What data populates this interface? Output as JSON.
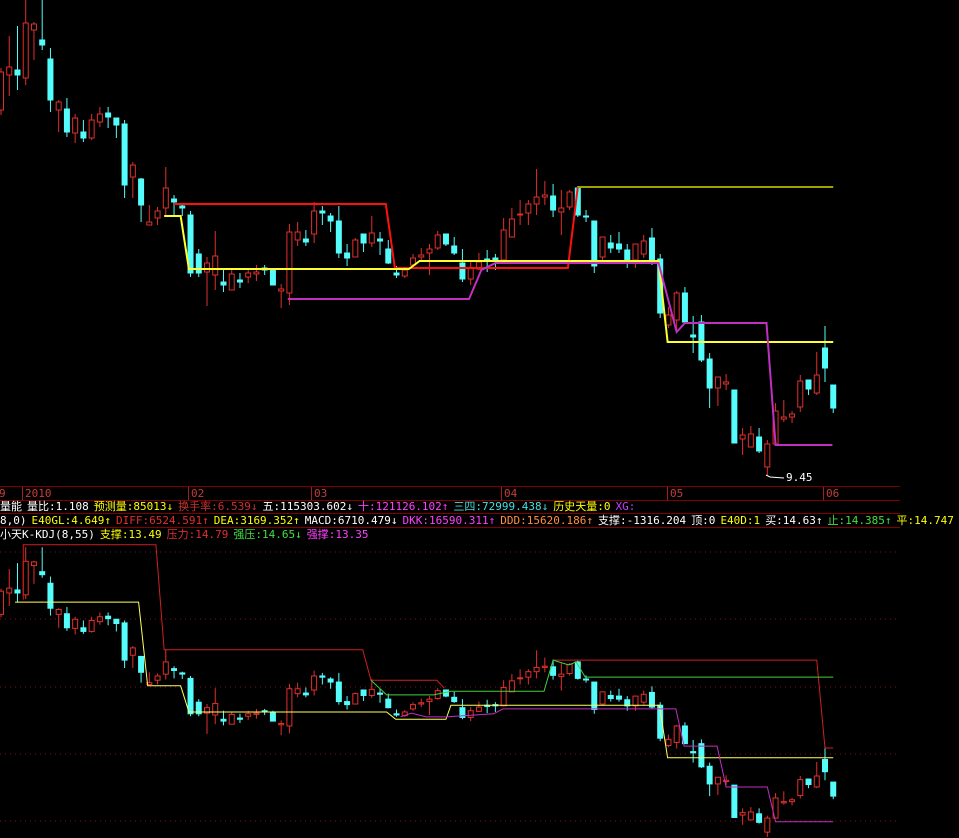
{
  "axis": {
    "labels": [
      "9",
      "2010",
      "02",
      "03",
      "04",
      "05",
      "06"
    ]
  },
  "indicator_rows": [
    [
      {
        "text": "量能",
        "color": "#ffffff"
      },
      {
        "text": "量比:1.108",
        "color": "#ffffff"
      },
      {
        "text": "预测量:85013↓",
        "color": "#ffff00"
      },
      {
        "text": "换手率:6.539↓",
        "color": "#c83232"
      },
      {
        "text": "五:115303.602↓",
        "color": "#ffffff"
      },
      {
        "text": "十:121126.102↑",
        "color": "#ff40ff"
      },
      {
        "text": "三四:72999.438↓",
        "color": "#40e0e0"
      },
      {
        "text": "历史天量:0",
        "color": "#ffff00"
      },
      {
        "text": "XG:",
        "color": "#c040ff"
      }
    ],
    [
      {
        "text": "8,0)",
        "color": "#ffffff"
      },
      {
        "text": "E40GL:4.649↑",
        "color": "#ffff00"
      },
      {
        "text": "DIFF:6524.591↑",
        "color": "#e03030"
      },
      {
        "text": "DEA:3169.352↑",
        "color": "#ffff00"
      },
      {
        "text": "MACD:6710.479↓",
        "color": "#ffffff"
      },
      {
        "text": "DKK:16590.311↑",
        "color": "#ff40ff"
      },
      {
        "text": "DDD:15620.186↑",
        "color": "#ff9040"
      },
      {
        "text": "支撑:-1316.204",
        "color": "#ffffff"
      },
      {
        "text": "顶:0",
        "color": "#ffffff"
      },
      {
        "text": "E40D:1",
        "color": "#ffff00"
      },
      {
        "text": "买:14.63↑",
        "color": "#ffffff"
      },
      {
        "text": "止:14.385↑",
        "color": "#40e040"
      },
      {
        "text": "平:14.747",
        "color": "#ffff00"
      }
    ],
    [
      {
        "text": "小天K-KDJ(8,55)",
        "color": "#ffffff"
      },
      {
        "text": "支撑:13.49",
        "color": "#ffff00"
      },
      {
        "text": "压力:14.79",
        "color": "#e03030"
      },
      {
        "text": "强压:14.65↓",
        "color": "#40e040"
      },
      {
        "text": "强撑:13.35",
        "color": "#ff40ff"
      }
    ]
  ],
  "colors": {
    "up": "#e0302c",
    "down": "#54fcfc",
    "background": "#000000",
    "grid": "#800000"
  },
  "chart_data": [
    {
      "type": "candlestick",
      "pane": "main",
      "annotation": "9.45",
      "candles": [
        [
          13.1,
          13.52,
          13.05,
          13.48
        ],
        [
          13.45,
          13.84,
          13.24,
          13.53
        ],
        [
          13.5,
          13.94,
          13.3,
          13.45
        ],
        [
          13.42,
          14.2,
          13.35,
          13.97
        ],
        [
          13.9,
          13.98,
          13.6,
          13.96
        ],
        [
          13.8,
          14.2,
          13.7,
          13.75
        ],
        [
          13.61,
          13.72,
          13.08,
          13.2
        ],
        [
          13.1,
          13.2,
          12.88,
          13.18
        ],
        [
          13.11,
          13.22,
          12.83,
          12.88
        ],
        [
          12.87,
          13.06,
          12.77,
          13.02
        ],
        [
          12.88,
          13.0,
          12.78,
          12.82
        ],
        [
          12.82,
          13.06,
          12.8,
          13.0
        ],
        [
          12.98,
          13.13,
          12.93,
          13.06
        ],
        [
          13.07,
          13.13,
          12.92,
          13.03
        ],
        [
          13.02,
          13.02,
          12.82,
          12.95
        ],
        [
          12.96,
          13.0,
          12.22,
          12.35
        ],
        [
          12.43,
          12.58,
          12.22,
          12.55
        ],
        [
          12.41,
          12.42,
          11.98,
          12.15
        ],
        [
          11.95,
          12.15,
          11.95,
          11.98
        ],
        [
          12.02,
          12.13,
          11.95,
          12.09
        ],
        [
          12.12,
          12.53,
          12.03,
          12.32
        ],
        [
          12.21,
          12.25,
          12.05,
          12.18
        ],
        [
          12.14,
          12.16,
          12.04,
          12.12
        ],
        [
          12.05,
          12.09,
          11.43,
          11.47
        ],
        [
          11.66,
          11.71,
          11.43,
          11.47
        ],
        [
          11.48,
          11.63,
          11.14,
          11.57
        ],
        [
          11.45,
          11.89,
          11.3,
          11.64
        ],
        [
          11.38,
          11.52,
          11.28,
          11.35
        ],
        [
          11.3,
          11.5,
          11.3,
          11.46
        ],
        [
          11.4,
          11.47,
          11.32,
          11.38
        ],
        [
          11.43,
          11.52,
          11.37,
          11.47
        ],
        [
          11.46,
          11.55,
          11.39,
          11.48
        ],
        [
          11.52,
          11.55,
          11.45,
          11.5
        ],
        [
          11.5,
          11.52,
          11.35,
          11.35
        ],
        [
          11.29,
          11.36,
          11.12,
          11.31
        ],
        [
          11.27,
          11.96,
          11.15,
          11.88
        ],
        [
          11.8,
          11.98,
          11.74,
          11.88
        ],
        [
          11.81,
          11.9,
          11.74,
          11.78
        ],
        [
          11.86,
          12.18,
          11.77,
          12.09
        ],
        [
          12.09,
          12.14,
          11.95,
          12.07
        ],
        [
          12.04,
          12.07,
          11.88,
          11.99
        ],
        [
          11.99,
          12.14,
          11.62,
          11.67
        ],
        [
          11.67,
          11.76,
          11.54,
          11.62
        ],
        [
          11.63,
          11.82,
          11.63,
          11.8
        ],
        [
          11.86,
          11.86,
          11.68,
          11.77
        ],
        [
          11.77,
          12.04,
          11.73,
          11.87
        ],
        [
          11.81,
          11.88,
          11.65,
          11.79
        ],
        [
          11.71,
          11.8,
          11.56,
          11.57
        ],
        [
          11.47,
          11.54,
          11.42,
          11.45
        ],
        [
          11.44,
          11.53,
          11.42,
          11.5
        ],
        [
          11.55,
          11.66,
          11.52,
          11.62
        ],
        [
          11.63,
          11.72,
          11.58,
          11.65
        ],
        [
          11.67,
          11.76,
          11.45,
          11.71
        ],
        [
          11.72,
          11.89,
          11.7,
          11.85
        ],
        [
          11.86,
          11.86,
          11.74,
          11.76
        ],
        [
          11.74,
          11.83,
          11.65,
          11.67
        ],
        [
          11.57,
          11.71,
          11.38,
          11.41
        ],
        [
          11.41,
          11.58,
          11.35,
          11.52
        ],
        [
          11.51,
          11.67,
          11.5,
          11.58
        ],
        [
          11.61,
          11.7,
          11.48,
          11.59
        ],
        [
          11.62,
          11.66,
          11.5,
          11.6
        ],
        [
          11.6,
          12.02,
          11.6,
          11.9
        ],
        [
          11.83,
          12.12,
          11.83,
          12.01
        ],
        [
          12.05,
          12.2,
          11.95,
          12.06
        ],
        [
          12.07,
          12.2,
          11.95,
          12.16
        ],
        [
          12.16,
          12.51,
          12.05,
          12.23
        ],
        [
          12.23,
          12.39,
          12.15,
          12.25
        ],
        [
          12.24,
          12.36,
          12.03,
          12.1
        ],
        [
          12.08,
          12.3,
          11.85,
          12.12
        ],
        [
          12.13,
          12.3,
          12.1,
          12.28
        ],
        [
          12.32,
          12.34,
          12.03,
          12.05
        ],
        [
          12.04,
          12.1,
          11.98,
          12.03
        ],
        [
          11.99,
          11.99,
          11.47,
          11.54
        ],
        [
          11.63,
          11.83,
          11.6,
          11.83
        ],
        [
          11.77,
          11.85,
          11.67,
          11.72
        ],
        [
          11.76,
          11.88,
          11.67,
          11.71
        ],
        [
          11.7,
          11.76,
          11.52,
          11.6
        ],
        [
          11.6,
          11.76,
          11.52,
          11.76
        ],
        [
          11.66,
          11.85,
          11.62,
          11.79
        ],
        [
          11.82,
          11.92,
          11.55,
          11.58
        ],
        [
          11.61,
          11.66,
          11.02,
          11.07
        ],
        [
          10.95,
          11.13,
          10.92,
          11.05
        ],
        [
          11.0,
          11.29,
          10.9,
          11.27
        ],
        [
          11.27,
          11.33,
          10.98,
          10.98
        ],
        [
          10.85,
          11.04,
          10.67,
          10.83
        ],
        [
          10.98,
          11.05,
          10.58,
          10.6
        ],
        [
          10.61,
          10.67,
          10.12,
          10.32
        ],
        [
          10.32,
          10.43,
          10.14,
          10.43
        ],
        [
          10.36,
          10.46,
          10.3,
          10.38
        ],
        [
          10.3,
          10.3,
          9.77,
          9.77
        ],
        [
          9.81,
          9.92,
          9.65,
          9.85
        ],
        [
          9.73,
          9.94,
          9.73,
          9.86
        ],
        [
          9.83,
          9.92,
          9.67,
          9.69
        ],
        [
          9.53,
          9.8,
          9.45,
          9.76
        ],
        [
          9.76,
          10.17,
          9.75,
          10.09
        ],
        [
          10.01,
          10.2,
          9.98,
          10.03
        ],
        [
          10.03,
          10.09,
          9.97,
          10.06
        ],
        [
          10.13,
          10.45,
          10.08,
          10.39
        ],
        [
          10.4,
          10.4,
          10.25,
          10.31
        ],
        [
          10.27,
          10.68,
          10.25,
          10.45
        ],
        [
          10.72,
          10.94,
          10.38,
          10.52
        ],
        [
          10.35,
          10.35,
          10.07,
          10.12
        ]
      ],
      "lines": [
        {
          "color": "#ff1010",
          "points": [
            [
              22,
              12.16
            ],
            [
              47.7,
              12.16
            ],
            [
              48.8,
              11.52
            ],
            [
              69.8,
              11.52
            ],
            [
              71,
              12.33
            ]
          ]
        },
        {
          "color": "#a0a000",
          "points": [
            [
              71,
              12.33
            ],
            [
              102,
              12.33
            ]
          ]
        },
        {
          "color": "#ffff30",
          "points": [
            [
              20.8,
              12.04
            ],
            [
              22.8,
              12.04
            ],
            [
              23.8,
              11.51
            ],
            [
              50.5,
              11.51
            ],
            [
              51.8,
              11.59
            ],
            [
              80.8,
              11.59
            ],
            [
              81.9,
              10.78
            ],
            [
              102,
              10.78
            ]
          ]
        },
        {
          "color": "#c030c0",
          "points": [
            [
              35.8,
              11.21
            ],
            [
              57.8,
              11.21
            ],
            [
              59.3,
              11.5
            ],
            [
              61,
              11.57
            ],
            [
              80.8,
              11.57
            ],
            [
              83,
              10.88
            ],
            [
              84,
              10.97
            ],
            [
              93.9,
              10.97
            ],
            [
              95,
              9.75
            ],
            [
              101.9,
              9.75
            ]
          ]
        }
      ]
    },
    {
      "type": "candlestick",
      "pane": "indicator",
      "lines": [
        {
          "color": "#d02020",
          "points": [
            [
              3.7,
              13.34
            ],
            [
              3.7,
              14.24
            ],
            [
              19.8,
              14.24
            ],
            [
              20.8,
              12.52
            ],
            [
              44.9,
              12.52
            ],
            [
              45.9,
              12.02
            ],
            [
              53.9,
              12.02
            ],
            [
              54.8,
              11.89
            ]
          ]
        },
        {
          "color": "#d02020",
          "points": [
            [
              68,
              12.35
            ],
            [
              100,
              12.35
            ],
            [
              101,
              10.91
            ],
            [
              102,
              10.91
            ]
          ]
        },
        {
          "color": "#ffff60",
          "points": [
            [
              2.7,
              13.3
            ],
            [
              17.7,
              13.3
            ],
            [
              18.8,
              11.93
            ],
            [
              22.8,
              11.93
            ],
            [
              23.8,
              11.5
            ],
            [
              47.8,
              11.5
            ],
            [
              48.9,
              11.38
            ],
            [
              55,
              11.38
            ],
            [
              55.6,
              11.61
            ],
            [
              80.9,
              11.61
            ],
            [
              81.9,
              10.75
            ],
            [
              102,
              10.75
            ]
          ]
        },
        {
          "color": "#40d040",
          "points": [
            [
              45.9,
              12.02
            ],
            [
              47.8,
              11.78
            ],
            [
              53.5,
              11.78
            ],
            [
              55.6,
              11.84
            ],
            [
              66.9,
              11.84
            ],
            [
              68,
              12.35
            ],
            [
              69.9,
              12.27
            ],
            [
              70.8,
              12.32
            ],
            [
              71.9,
              12.07
            ],
            [
              102,
              12.07
            ]
          ]
        },
        {
          "color": "#c030c0",
          "points": [
            [
              49.5,
              11.42
            ],
            [
              50.8,
              11.48
            ],
            [
              52.6,
              11.42
            ],
            [
              55,
              11.42
            ],
            [
              60.8,
              11.47
            ],
            [
              61.9,
              11.55
            ],
            [
              82.9,
              11.55
            ],
            [
              83.9,
              10.94
            ],
            [
              87.9,
              10.94
            ],
            [
              89,
              10.27
            ],
            [
              94,
              10.27
            ],
            [
              95,
              9.7
            ],
            [
              102,
              9.7
            ]
          ]
        }
      ]
    }
  ]
}
